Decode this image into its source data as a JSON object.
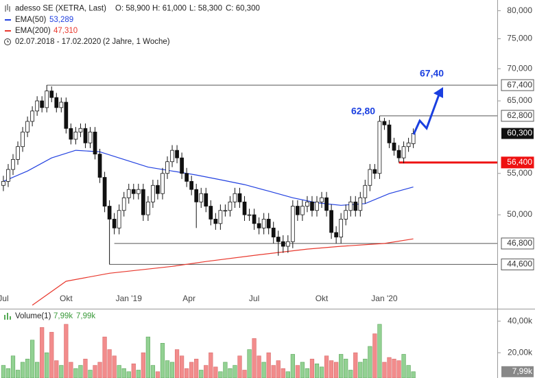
{
  "chart_data": {
    "type": "candlestick",
    "title": "adesso SE (XETRA, Last)",
    "ohlc_labels": [
      "O: 58,900",
      "H: 61,000",
      "L: 58,300",
      "C: 60,300"
    ],
    "date_range": "02.07.2018 - 17.02.2020",
    "period": "(2 Jahre, 1 Woche)",
    "open": [
      53.5,
      54.0,
      55.5,
      56.8,
      58.5,
      60.5,
      62.0,
      63.5,
      65.0,
      64.0,
      66.5,
      65.5,
      64.0,
      64.8,
      61.0,
      59.5,
      60.5,
      61.0,
      59.0,
      60.5,
      57.5,
      54.5,
      51.0,
      49.5,
      48.5,
      50.5,
      52.0,
      53.0,
      52.5,
      53.0,
      50.0,
      51.5,
      53.5,
      52.5,
      55.0,
      56.5,
      58.0,
      57.0,
      55.0,
      54.0,
      53.0,
      51.5,
      52.5,
      51.0,
      49.5,
      49.0,
      50.5,
      50.5,
      51.5,
      52.5,
      51.5,
      50.0,
      50.0,
      49.0,
      48.5,
      49.5,
      48.5,
      47.5,
      47.0,
      46.5,
      47.0,
      51.0,
      50.0,
      51.0,
      51.5,
      50.5,
      51.5,
      52.0,
      50.5,
      48.0,
      47.5,
      49.5,
      50.5,
      51.5,
      50.5,
      52.0,
      53.5,
      55.5,
      55.0,
      62.0,
      61.5,
      59.0,
      58.0,
      57.0,
      58.5,
      58.9
    ],
    "high": [
      54.7,
      56.2,
      57.5,
      59.2,
      61.2,
      62.7,
      64.2,
      65.7,
      65.7,
      67.4,
      67.2,
      66.2,
      65.5,
      65.5,
      61.7,
      61.2,
      61.7,
      61.7,
      61.2,
      61.2,
      58.2,
      55.2,
      51.7,
      50.2,
      51.2,
      52.7,
      53.7,
      53.7,
      53.7,
      53.7,
      52.2,
      54.2,
      54.2,
      55.7,
      57.2,
      58.7,
      58.7,
      57.7,
      55.7,
      54.7,
      53.7,
      53.2,
      53.2,
      51.7,
      50.2,
      51.2,
      51.2,
      52.2,
      53.2,
      53.2,
      52.2,
      50.7,
      50.7,
      49.7,
      50.2,
      50.2,
      49.2,
      48.2,
      47.7,
      47.7,
      51.7,
      51.7,
      51.7,
      52.2,
      52.2,
      52.2,
      52.7,
      52.7,
      51.2,
      48.7,
      50.2,
      51.2,
      52.2,
      52.2,
      52.7,
      54.2,
      56.2,
      56.2,
      62.8,
      62.5,
      62.2,
      59.7,
      58.7,
      59.2,
      59.7,
      61.0
    ],
    "low": [
      52.8,
      53.3,
      54.8,
      56.1,
      57.8,
      59.8,
      61.3,
      62.8,
      63.3,
      63.3,
      64.8,
      63.3,
      63.3,
      60.3,
      58.8,
      58.8,
      59.8,
      58.3,
      58.3,
      56.8,
      53.8,
      50.3,
      44.6,
      47.8,
      47.8,
      49.8,
      51.3,
      51.8,
      51.8,
      49.3,
      49.3,
      50.8,
      51.8,
      51.8,
      54.3,
      55.8,
      56.3,
      54.3,
      53.3,
      52.3,
      48.5,
      50.8,
      50.3,
      48.8,
      48.3,
      48.3,
      49.8,
      49.8,
      50.8,
      50.8,
      49.3,
      49.3,
      48.3,
      47.8,
      47.8,
      47.8,
      46.8,
      45.5,
      45.8,
      45.8,
      46.3,
      49.3,
      49.3,
      50.3,
      49.8,
      49.8,
      50.8,
      49.8,
      47.3,
      46.8,
      46.8,
      48.8,
      49.8,
      49.8,
      49.8,
      51.3,
      52.8,
      54.3,
      54.3,
      60.8,
      58.3,
      57.3,
      56.4,
      56.3,
      57.8,
      58.3
    ],
    "close": [
      54.0,
      55.5,
      56.8,
      58.5,
      60.5,
      62.0,
      63.5,
      65.0,
      64.0,
      66.5,
      65.5,
      64.0,
      64.8,
      61.0,
      59.5,
      60.5,
      61.0,
      59.0,
      60.5,
      57.5,
      54.5,
      51.0,
      49.5,
      48.5,
      50.5,
      52.0,
      53.0,
      52.5,
      53.0,
      50.0,
      51.5,
      53.5,
      52.5,
      55.0,
      56.5,
      58.0,
      57.0,
      55.0,
      54.0,
      53.0,
      51.5,
      52.5,
      51.0,
      49.5,
      49.0,
      50.5,
      50.5,
      51.5,
      52.5,
      51.5,
      50.0,
      50.0,
      49.0,
      48.5,
      49.5,
      48.5,
      47.5,
      47.0,
      46.5,
      47.0,
      51.0,
      50.0,
      51.0,
      51.5,
      50.5,
      51.5,
      52.0,
      50.5,
      48.0,
      47.5,
      49.5,
      50.5,
      51.5,
      50.5,
      52.0,
      53.5,
      55.5,
      55.0,
      62.0,
      61.5,
      59.0,
      58.0,
      57.0,
      58.5,
      59.0,
      60.3
    ],
    "up_color": "#ffffff",
    "down_color": "#111111",
    "log_scale": true,
    "ylim": [
      40.4,
      82.0
    ],
    "yticks": [
      {
        "value": 80,
        "label": "80,000"
      },
      {
        "value": 75,
        "label": "75,000"
      },
      {
        "value": 70,
        "label": "70,000"
      },
      {
        "value": 65,
        "label": "65,000"
      },
      {
        "value": 55,
        "label": "55,000"
      },
      {
        "value": 50,
        "label": "50,000"
      }
    ],
    "xlim": [
      -0.7,
      102.4
    ],
    "xticks": [
      {
        "value": 0,
        "label": "Jul"
      },
      {
        "value": 13,
        "label": "Okt"
      },
      {
        "value": 26,
        "label": "Jan '19"
      },
      {
        "value": 38.5,
        "label": "Apr"
      },
      {
        "value": 52,
        "label": "Jul"
      },
      {
        "value": 66,
        "label": "Okt"
      },
      {
        "value": 79,
        "label": "Jan '20"
      }
    ],
    "series": [
      {
        "name": "EMA(50)",
        "last_label": "53,289",
        "color": "#2140e0",
        "x": [
          0,
          5,
          10,
          15,
          20,
          25,
          30,
          35,
          40,
          45,
          50,
          55,
          60,
          65,
          70,
          75,
          80,
          85
        ],
        "values": [
          54.0,
          55.3,
          57.0,
          58.0,
          57.8,
          56.8,
          55.8,
          55.3,
          54.8,
          54.2,
          53.6,
          52.8,
          52.0,
          51.4,
          51.1,
          51.3,
          52.5,
          53.3
        ]
      },
      {
        "name": "EMA(200)",
        "last_label": "47,310",
        "color": "#e8372c",
        "x": [
          6,
          13,
          22,
          35,
          42,
          53,
          63,
          70,
          79,
          85
        ],
        "values": [
          40.6,
          42.9,
          43.7,
          44.4,
          44.9,
          45.6,
          46.2,
          46.5,
          46.8,
          47.3
        ]
      }
    ],
    "levels": [
      {
        "value": 67.4,
        "label": "67,400",
        "x": 9,
        "color": "#555555"
      },
      {
        "value": 62.8,
        "label": "62,800",
        "x": 78,
        "color": "#555555"
      },
      {
        "value": 56.4,
        "label": "56,400",
        "x": 82,
        "color": "#ee1111"
      },
      {
        "value": 46.8,
        "label": "46,800",
        "x": 23,
        "color": "#555555"
      },
      {
        "value": 44.6,
        "label": "44,600",
        "x": 22,
        "color": "#555555"
      }
    ],
    "last": {
      "value": 60.3,
      "label": "60,300"
    },
    "annotations": [
      "67,40",
      "62,80"
    ],
    "volume": {
      "name": "Volume(1)",
      "last_label": "7,99k",
      "values": [
        12,
        10,
        18,
        9,
        14,
        16,
        28,
        14,
        36,
        20,
        33,
        15,
        12,
        38,
        14,
        10,
        12,
        16,
        9,
        12,
        14,
        30,
        22,
        18,
        12,
        10,
        8,
        13,
        9,
        20,
        30,
        12,
        8,
        26,
        15,
        14,
        22,
        18,
        10,
        14,
        16,
        9,
        12,
        20,
        11,
        8,
        14,
        10,
        12,
        18,
        9,
        22,
        29,
        18,
        14,
        20,
        12,
        15,
        10,
        8,
        19,
        12,
        14,
        10,
        16,
        13,
        11,
        18,
        15,
        14,
        19,
        16,
        9,
        20,
        14,
        16,
        24,
        32,
        38,
        14,
        17,
        16,
        15,
        19,
        12,
        7.99
      ],
      "ylim": [
        4,
        47
      ],
      "yticks": [
        {
          "value": 40,
          "label": "40,00k"
        },
        {
          "value": 20,
          "label": "20,00k"
        }
      ],
      "up_color": "#93d193",
      "down_color": "#f28c8c"
    }
  }
}
